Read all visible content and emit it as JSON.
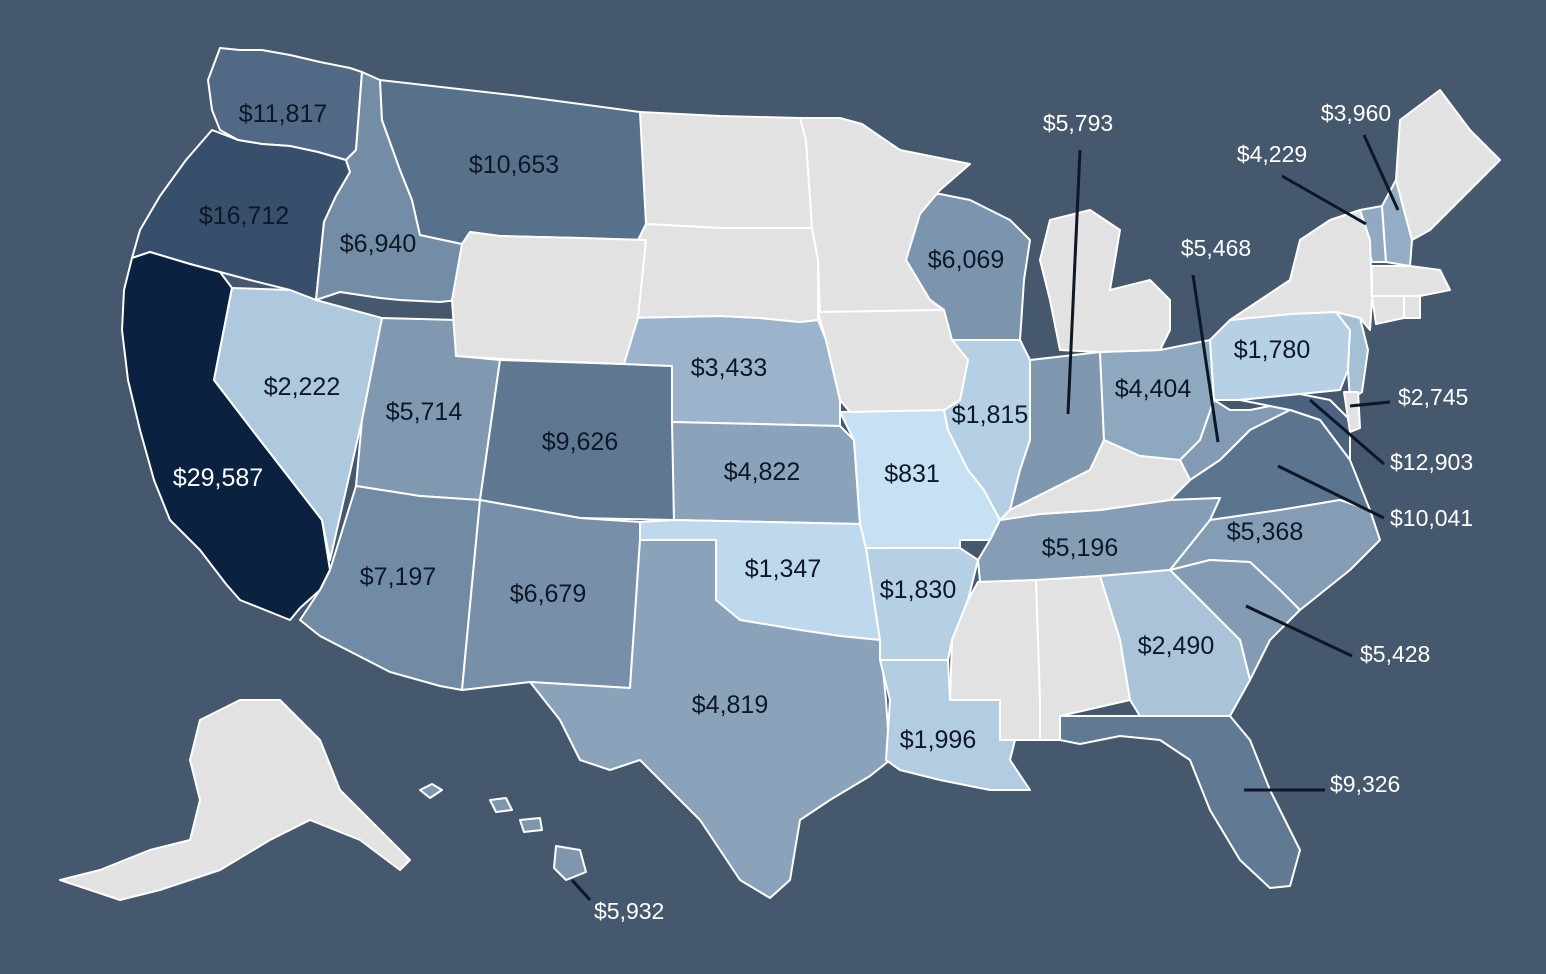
{
  "colors": {
    "background": "#46586e",
    "no_data": "#e2e2e2",
    "scale_lightest": "#c6e0f4",
    "scale_darkest": "#0a2140",
    "border": "#ffffff",
    "leader": "#0d1726"
  },
  "states": [
    {
      "id": "WA",
      "value": 11817,
      "label": "$11,817"
    },
    {
      "id": "OR",
      "value": 16712,
      "label": "$16,712"
    },
    {
      "id": "CA",
      "value": 29587,
      "label": "$29,587"
    },
    {
      "id": "ID",
      "value": 6940,
      "label": "$6,940"
    },
    {
      "id": "MT",
      "value": 10653,
      "label": "$10,653"
    },
    {
      "id": "NV",
      "value": 2222,
      "label": "$2,222"
    },
    {
      "id": "UT",
      "value": 5714,
      "label": "$5,714"
    },
    {
      "id": "AZ",
      "value": 7197,
      "label": "$7,197"
    },
    {
      "id": "CO",
      "value": 9626,
      "label": "$9,626"
    },
    {
      "id": "NM",
      "value": 6679,
      "label": "$6,679"
    },
    {
      "id": "NE",
      "value": 3433,
      "label": "$3,433"
    },
    {
      "id": "KS",
      "value": 4822,
      "label": "$4,822"
    },
    {
      "id": "OK",
      "value": 1347,
      "label": "$1,347"
    },
    {
      "id": "TX",
      "value": 4819,
      "label": "$4,819"
    },
    {
      "id": "MO",
      "value": 831,
      "label": "$831"
    },
    {
      "id": "AR",
      "value": 1830,
      "label": "$1,830"
    },
    {
      "id": "LA",
      "value": 1996,
      "label": "$1,996"
    },
    {
      "id": "WI",
      "value": 6069,
      "label": "$6,069"
    },
    {
      "id": "IL",
      "value": 1815,
      "label": "$1,815"
    },
    {
      "id": "IN",
      "value": 5793,
      "label": "$5,793"
    },
    {
      "id": "OH",
      "value": 4404,
      "label": "$4,404"
    },
    {
      "id": "WV",
      "value": 5468,
      "label": "$5,468"
    },
    {
      "id": "PA",
      "value": 1780,
      "label": "$1,780"
    },
    {
      "id": "NJ",
      "value": 2745,
      "label": "$2,745"
    },
    {
      "id": "MD",
      "value": 12903,
      "label": "$12,903"
    },
    {
      "id": "VA",
      "value": 10041,
      "label": "$10,041"
    },
    {
      "id": "NC",
      "value": 5368,
      "label": "$5,368"
    },
    {
      "id": "SC",
      "value": 5428,
      "label": "$5,428"
    },
    {
      "id": "TN",
      "value": 5196,
      "label": "$5,196"
    },
    {
      "id": "GA",
      "value": 2490,
      "label": "$2,490"
    },
    {
      "id": "FL",
      "value": 9326,
      "label": "$9,326"
    },
    {
      "id": "VT",
      "value": 4229,
      "label": "$4,229"
    },
    {
      "id": "NH",
      "value": 3960,
      "label": "$3,960"
    },
    {
      "id": "HI",
      "value": 5932,
      "label": "$5,932"
    },
    {
      "id": "ND",
      "value": null
    },
    {
      "id": "SD",
      "value": null
    },
    {
      "id": "WY",
      "value": null
    },
    {
      "id": "MN",
      "value": null
    },
    {
      "id": "IA",
      "value": null
    },
    {
      "id": "MI",
      "value": null
    },
    {
      "id": "KY",
      "value": null
    },
    {
      "id": "MS",
      "value": null
    },
    {
      "id": "AL",
      "value": null
    },
    {
      "id": "NY",
      "value": null
    },
    {
      "id": "ME",
      "value": null
    },
    {
      "id": "MA",
      "value": null
    },
    {
      "id": "CT",
      "value": null
    },
    {
      "id": "RI",
      "value": null
    },
    {
      "id": "DE",
      "value": null
    },
    {
      "id": "AK",
      "value": null
    }
  ]
}
